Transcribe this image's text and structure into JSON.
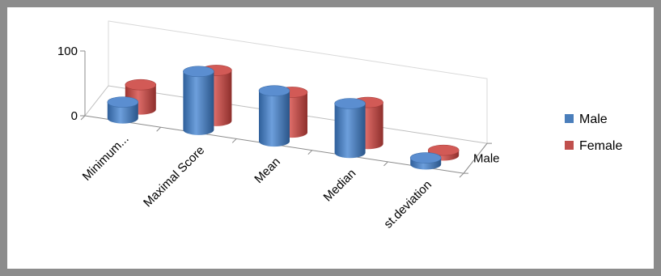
{
  "chart_data": {
    "type": "bar",
    "style": "3d-cylinder",
    "title": "",
    "categories": [
      "Minimum...",
      "Maximal Score",
      "Mean",
      "Median",
      "st.deviation"
    ],
    "ylim": [
      0,
      100
    ],
    "yticks": [
      0,
      100
    ],
    "depth_axis_label": "Male",
    "legend_position": "right",
    "grid": false,
    "series": [
      {
        "name": "Male",
        "color": "#4a7ebb",
        "values": [
          25,
          90,
          78,
          76,
          10
        ]
      },
      {
        "name": "Female",
        "color": "#c0504d",
        "values": [
          38,
          78,
          62,
          64,
          8
        ]
      }
    ]
  }
}
